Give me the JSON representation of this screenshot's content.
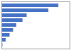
{
  "chart_data": {
    "type": "bar",
    "orientation": "horizontal",
    "categories": [
      null,
      null,
      null,
      null,
      null,
      null,
      null,
      null,
      null
    ],
    "values": [
      7517,
      6200,
      3331,
      2782,
      1962,
      1541,
      1076,
      560,
      132
    ],
    "color": "#4472c4",
    "xlim": [
      0,
      9000
    ],
    "tick_labels": false
  }
}
